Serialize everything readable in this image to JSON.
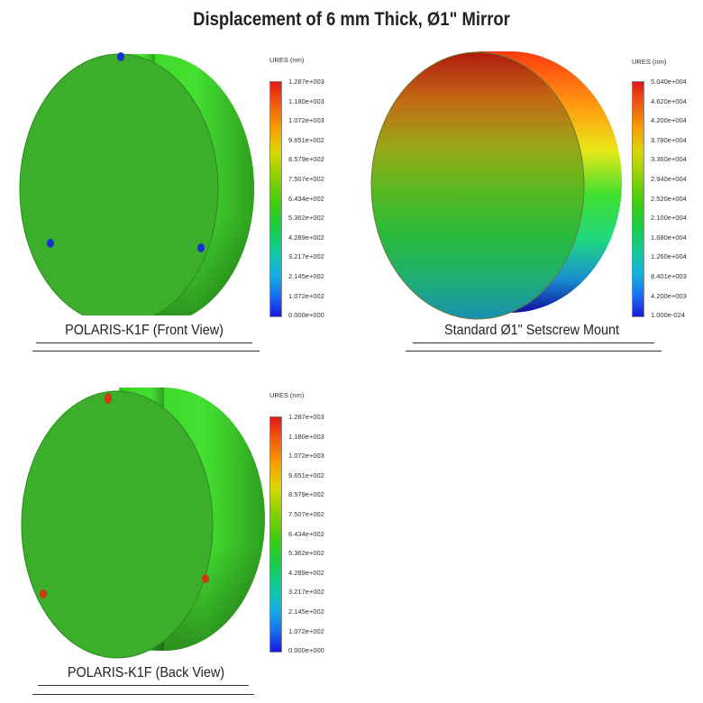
{
  "title": "Displacement of 6 mm Thick, Ø1\" Mirror",
  "panels": [
    {
      "caption": "POLARIS-K1F (Front View)",
      "legend_title": "URES (nm)",
      "ticks": [
        "1.287e+003",
        "1.180e+003",
        "1.072e+003",
        "9.651e+002",
        "8.579e+002",
        "7.507e+002",
        "6.434e+002",
        "5.362e+002",
        "4.289e+002",
        "3.217e+002",
        "2.145e+002",
        "1.072e+002",
        "0.000e+000"
      ],
      "face_color": "#3cae2c",
      "rim_color": "#44d82c",
      "contact_points_color": "#1830d0"
    },
    {
      "caption": "Standard Ø1\" Setscrew Mount",
      "legend_title": "URES (nm)",
      "ticks": [
        "5.040e+004",
        "4.620e+004",
        "4.200e+004",
        "3.780e+004",
        "3.360e+004",
        "2.940e+004",
        "2.520e+004",
        "2.100e+004",
        "1.680e+004",
        "1.260e+004",
        "8.401e+003",
        "4.200e+003",
        "1.000e-024"
      ],
      "face_gradient": [
        "#b01a10",
        "#c46a14",
        "#98a818",
        "#58b820",
        "#2aba3c",
        "#20b070",
        "#1a90b0"
      ],
      "rim_gradient": [
        "#ff3a10",
        "#ffa010",
        "#e8e818",
        "#40e030",
        "#20d880",
        "#1890d0",
        "#1010a0"
      ]
    },
    {
      "caption": "POLARIS-K1F (Back View)",
      "legend_title": "URES (nm)",
      "ticks": [
        "1.287e+003",
        "1.180e+003",
        "1.072e+003",
        "9.651e+002",
        "8.579e+002",
        "7.507e+002",
        "6.434e+002",
        "5.362e+002",
        "4.289e+002",
        "3.217e+002",
        "2.145e+002",
        "1.072e+002",
        "0.000e+000"
      ],
      "face_color": "#3cae2c",
      "rim_color": "#44d82c",
      "contact_points_color": "#d03818"
    }
  ]
}
